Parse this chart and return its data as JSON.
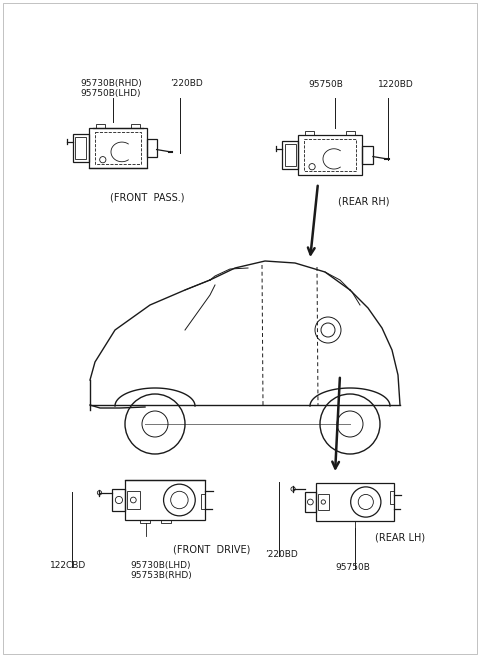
{
  "bg_color": "#ffffff",
  "line_color": "#1a1a1a",
  "text_color": "#1a1a1a",
  "fig_width": 4.8,
  "fig_height": 6.57,
  "dpi": 100,
  "labels": {
    "top_left_part1": "95730B(RHD)",
    "top_left_part2": "95750B(LHD)",
    "top_left_label1": "’220BD",
    "top_left_caption": "(FRONT  PASS.)",
    "top_right_part1": "95750B",
    "top_right_label1": "1220BD",
    "top_right_caption": "(REAR RH)",
    "bottom_left_label1": "122CBD",
    "bottom_left_part1": "95730B(LHD)",
    "bottom_left_part2": "95753B(RHD)",
    "bottom_left_caption": "(FRONT  DRIVE)",
    "bottom_right_label1": "’220BD",
    "bottom_right_part1": "95750B",
    "bottom_right_caption": "(REAR LH)"
  },
  "font_size_label": 6.5,
  "font_size_caption": 7.0
}
